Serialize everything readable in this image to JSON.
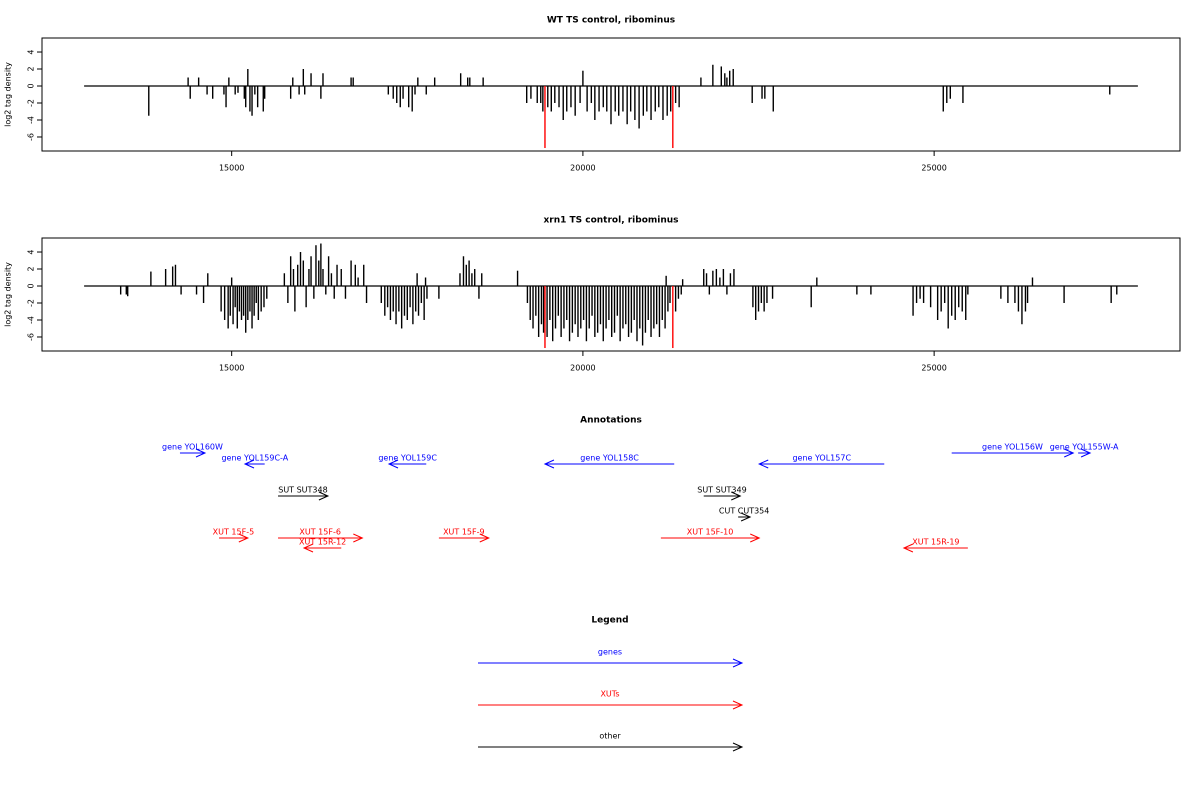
{
  "chart_data": [
    {
      "type": "bar",
      "title": "WT TS control, ribominus",
      "ylabel": "log2 tag density",
      "xlim": [
        12300,
        28500
      ],
      "xticks": [
        15000,
        20000,
        25000
      ],
      "ylim": [
        -7.65,
        5.65
      ],
      "yticks": [
        -6,
        -4,
        -2,
        0,
        2,
        4
      ],
      "series": [
        {
          "color": "#000000",
          "x": [
            13820,
            14380,
            14410,
            14530,
            14650,
            14730,
            14890,
            14920,
            14960,
            15050,
            15090,
            15180,
            15200,
            15230,
            15260,
            15290,
            15330,
            15370,
            15450,
            15470,
            15840,
            15870,
            15960,
            16020,
            16040,
            16130,
            16270,
            16300,
            16700,
            16730,
            17230,
            17300,
            17350,
            17400,
            17440,
            17520,
            17570,
            17610,
            17650,
            17770,
            17890,
            18260,
            18360,
            18390,
            18580,
            19200,
            19260,
            19350,
            19400,
            19430,
            19500,
            19550,
            19600,
            19660,
            19720,
            19770,
            19830,
            19890,
            19960,
            20000,
            20060,
            20120,
            20170,
            20230,
            20290,
            20340,
            20400,
            20460,
            20510,
            20570,
            20630,
            20680,
            20740,
            20800,
            20860,
            20910,
            20970,
            21030,
            21080,
            21140,
            21200,
            21250,
            21320,
            21370,
            21680,
            21850,
            21970,
            22020,
            22050,
            22090,
            22140,
            22410,
            22550,
            22590,
            22710,
            25130,
            25180,
            25230,
            25410,
            27500
          ],
          "values": [
            -3.5,
            1,
            -1.5,
            1,
            -1,
            -1.5,
            -1,
            -2.5,
            1,
            -1,
            -0.8,
            -1.5,
            -2.5,
            2,
            -3,
            -3.5,
            -1,
            -2.5,
            -3,
            -1.5,
            -1.5,
            1,
            -1,
            2,
            -1,
            1.5,
            -1.5,
            1.5,
            1,
            1,
            -1,
            -1.5,
            -2,
            -2.5,
            -1.5,
            -2.5,
            -3,
            -1,
            1,
            -1,
            1,
            1.5,
            1,
            1,
            1,
            -2,
            -1.5,
            -2,
            -2,
            -3,
            -2.5,
            -3,
            -2,
            -2.5,
            -4,
            -3,
            -2.5,
            -3.5,
            -2,
            1.8,
            -3,
            -2,
            -4,
            -3,
            -2.5,
            -3,
            -4.5,
            -3,
            -3.5,
            -3,
            -4.5,
            -3,
            -4,
            -5,
            -3.5,
            -3,
            -4,
            -3,
            -2.5,
            -4,
            -3.5,
            -3,
            -2,
            -2.5,
            1,
            2.5,
            2.3,
            1.5,
            1,
            1.8,
            2,
            -2,
            -1.5,
            -1.5,
            -3,
            -3,
            -2,
            -1.5,
            -2,
            -1
          ]
        },
        {
          "color": "#ff0000",
          "x": [
            19460,
            21280
          ],
          "values": [
            -7.3,
            -7.3
          ]
        }
      ]
    },
    {
      "type": "bar",
      "title": "xrn1 TS control, ribominus",
      "ylabel": "log2 tag density",
      "xlim": [
        12300,
        28500
      ],
      "xticks": [
        15000,
        20000,
        25000
      ],
      "ylim": [
        -7.65,
        5.65
      ],
      "yticks": [
        -6,
        -4,
        -2,
        0,
        2,
        4
      ],
      "series": [
        {
          "color": "#000000",
          "x": [
            13420,
            13500,
            13520,
            13850,
            14060,
            14160,
            14200,
            14280,
            14500,
            14600,
            14660,
            14850,
            14900,
            14950,
            14980,
            15000,
            15020,
            15050,
            15080,
            15110,
            15140,
            15170,
            15200,
            15230,
            15260,
            15290,
            15320,
            15350,
            15380,
            15420,
            15460,
            15500,
            15750,
            15800,
            15840,
            15880,
            15900,
            15940,
            15980,
            16020,
            16060,
            16100,
            16130,
            16170,
            16200,
            16240,
            16270,
            16300,
            16340,
            16380,
            16420,
            16460,
            16500,
            16560,
            16620,
            16700,
            16760,
            16800,
            16880,
            16920,
            17130,
            17180,
            17220,
            17260,
            17300,
            17340,
            17380,
            17420,
            17460,
            17500,
            17540,
            17580,
            17620,
            17640,
            17660,
            17700,
            17740,
            17760,
            17780,
            17950,
            18250,
            18300,
            18340,
            18380,
            18420,
            18460,
            18520,
            18560,
            19070,
            19210,
            19250,
            19290,
            19330,
            19370,
            19410,
            19440,
            19490,
            19530,
            19570,
            19610,
            19650,
            19690,
            19730,
            19770,
            19810,
            19850,
            19890,
            19930,
            19970,
            20010,
            20050,
            20090,
            20130,
            20170,
            20210,
            20250,
            20290,
            20330,
            20370,
            20410,
            20450,
            20490,
            20530,
            20570,
            20610,
            20650,
            20690,
            20730,
            20770,
            20810,
            20850,
            20890,
            20930,
            20970,
            21010,
            21050,
            21090,
            21130,
            21170,
            21185,
            21210,
            21240,
            21320,
            21360,
            21400,
            21420,
            21720,
            21760,
            21800,
            21850,
            21900,
            21950,
            22000,
            22050,
            22100,
            22150,
            22420,
            22460,
            22500,
            22540,
            22580,
            22620,
            22700,
            23250,
            23330,
            23900,
            24100,
            24700,
            24750,
            24800,
            24850,
            24950,
            25050,
            25100,
            25150,
            25200,
            25250,
            25300,
            25350,
            25400,
            25450,
            25480,
            25950,
            26050,
            26150,
            26200,
            26250,
            26300,
            26330,
            26400,
            26850,
            27520,
            27600
          ],
          "values": [
            -1,
            -1,
            -1.2,
            1.7,
            2,
            2.3,
            2.5,
            -1,
            -1,
            -2,
            1.5,
            -3,
            -4,
            -5,
            -3.5,
            1,
            -4.5,
            -2.5,
            -5,
            -3,
            -4,
            -3.5,
            -5.5,
            -4,
            -3,
            -5,
            -3.5,
            -2,
            -4,
            -3,
            -2.5,
            -1.5,
            1.5,
            -2,
            3.5,
            2,
            -3,
            2.5,
            4,
            3,
            -2.5,
            2,
            3.5,
            -1.5,
            4.8,
            3,
            5,
            2,
            -1,
            3.5,
            1.5,
            -1.5,
            2.5,
            2,
            -1.5,
            3,
            2.5,
            1,
            2.5,
            -2,
            -2,
            -3.5,
            -2.5,
            -4,
            -3,
            -4.5,
            -3,
            -5,
            -3.5,
            -4,
            -2.5,
            -4.5,
            -3,
            1.5,
            -3.5,
            -2,
            -4,
            1,
            -1.5,
            -1.5,
            1.5,
            3.5,
            2.5,
            3,
            1.5,
            2,
            -1.5,
            1.5,
            1.8,
            -2,
            -4,
            -5,
            -3.5,
            -6,
            -4.5,
            -5.5,
            -6,
            -4,
            -6.5,
            -5,
            -3.5,
            -6,
            -5,
            -4,
            -6.5,
            -5.5,
            -4.5,
            -6,
            -5,
            -4,
            -6.5,
            -5,
            -3.5,
            -6,
            -5.5,
            -4.5,
            -6.5,
            -5,
            -4,
            -6,
            -5.5,
            -3.5,
            -6.5,
            -5,
            -4.5,
            -6,
            -5.5,
            -4,
            -6.5,
            -5,
            -7,
            -5.5,
            -4,
            -6,
            -5,
            -4.5,
            -6,
            -4,
            -5,
            1.2,
            -3,
            -2,
            -3,
            -1.5,
            -1,
            0.8,
            2,
            1.5,
            -1,
            1.8,
            2,
            1,
            2,
            -1,
            1.5,
            2,
            -2.5,
            -4,
            -3,
            -2,
            -3,
            -2,
            -1.5,
            -2.5,
            1,
            -1,
            -1,
            -3.5,
            -2,
            -1.5,
            -2,
            -2.5,
            -4,
            -3,
            -2,
            -5,
            -3.5,
            -4,
            -2.5,
            -3,
            -4,
            -1,
            -1.5,
            -2,
            -2,
            -3,
            -4.5,
            -3,
            -2,
            1,
            -2,
            -2,
            -1
          ]
        },
        {
          "color": "#ff0000",
          "x": [
            19460,
            21280
          ],
          "values": [
            -7.3,
            -7.3
          ]
        }
      ]
    },
    {
      "type": "annotation",
      "title": "Annotations",
      "features": [
        {
          "label": "gene YOL160W",
          "start": 14264,
          "end": 14620,
          "color": "#0000ff"
        },
        {
          "label": "gene YOL159C-A",
          "start": 15470,
          "end": 15190,
          "color": "#0000ff"
        },
        {
          "label": "gene YOL159C",
          "start": 17770,
          "end": 17240,
          "color": "#0000ff"
        },
        {
          "label": "gene YOL158C",
          "start": 21300,
          "end": 19460,
          "color": "#0000ff"
        },
        {
          "label": "gene YOL157C",
          "start": 24290,
          "end": 22510,
          "color": "#0000ff"
        },
        {
          "label": "gene YOL156W",
          "start": 25250,
          "end": 26980,
          "color": "#0000ff"
        },
        {
          "label": "gene YOL155W-A",
          "start": 27050,
          "end": 27220,
          "color": "#0000ff"
        },
        {
          "label": "SUT SUT348",
          "start": 15660,
          "end": 16370,
          "color": "#000000"
        },
        {
          "label": "SUT SUT349",
          "start": 21720,
          "end": 22240,
          "color": "#000000"
        },
        {
          "label": "CUT CUT354",
          "start": 22210,
          "end": 22380,
          "color": "#000000"
        },
        {
          "label": "XUT 15F-5",
          "start": 14820,
          "end": 15230,
          "color": "#ff0000"
        },
        {
          "label": "XUT 15F-6",
          "start": 15660,
          "end": 16860,
          "color": "#ff0000"
        },
        {
          "label": "XUT 15R-12",
          "start": 16560,
          "end": 16030,
          "color": "#ff0000"
        },
        {
          "label": "XUT 15F-9",
          "start": 17950,
          "end": 18660,
          "color": "#ff0000"
        },
        {
          "label": "XUT 15F-10",
          "start": 21110,
          "end": 22510,
          "color": "#ff0000"
        },
        {
          "label": "XUT 15R-19",
          "start": 25480,
          "end": 24570,
          "color": "#ff0000"
        }
      ]
    },
    {
      "type": "legend",
      "title": "Legend",
      "items": [
        {
          "label": "genes",
          "color": "#0000ff"
        },
        {
          "label": "XUTs",
          "color": "#ff0000"
        },
        {
          "label": "other",
          "color": "#000000"
        }
      ]
    }
  ]
}
